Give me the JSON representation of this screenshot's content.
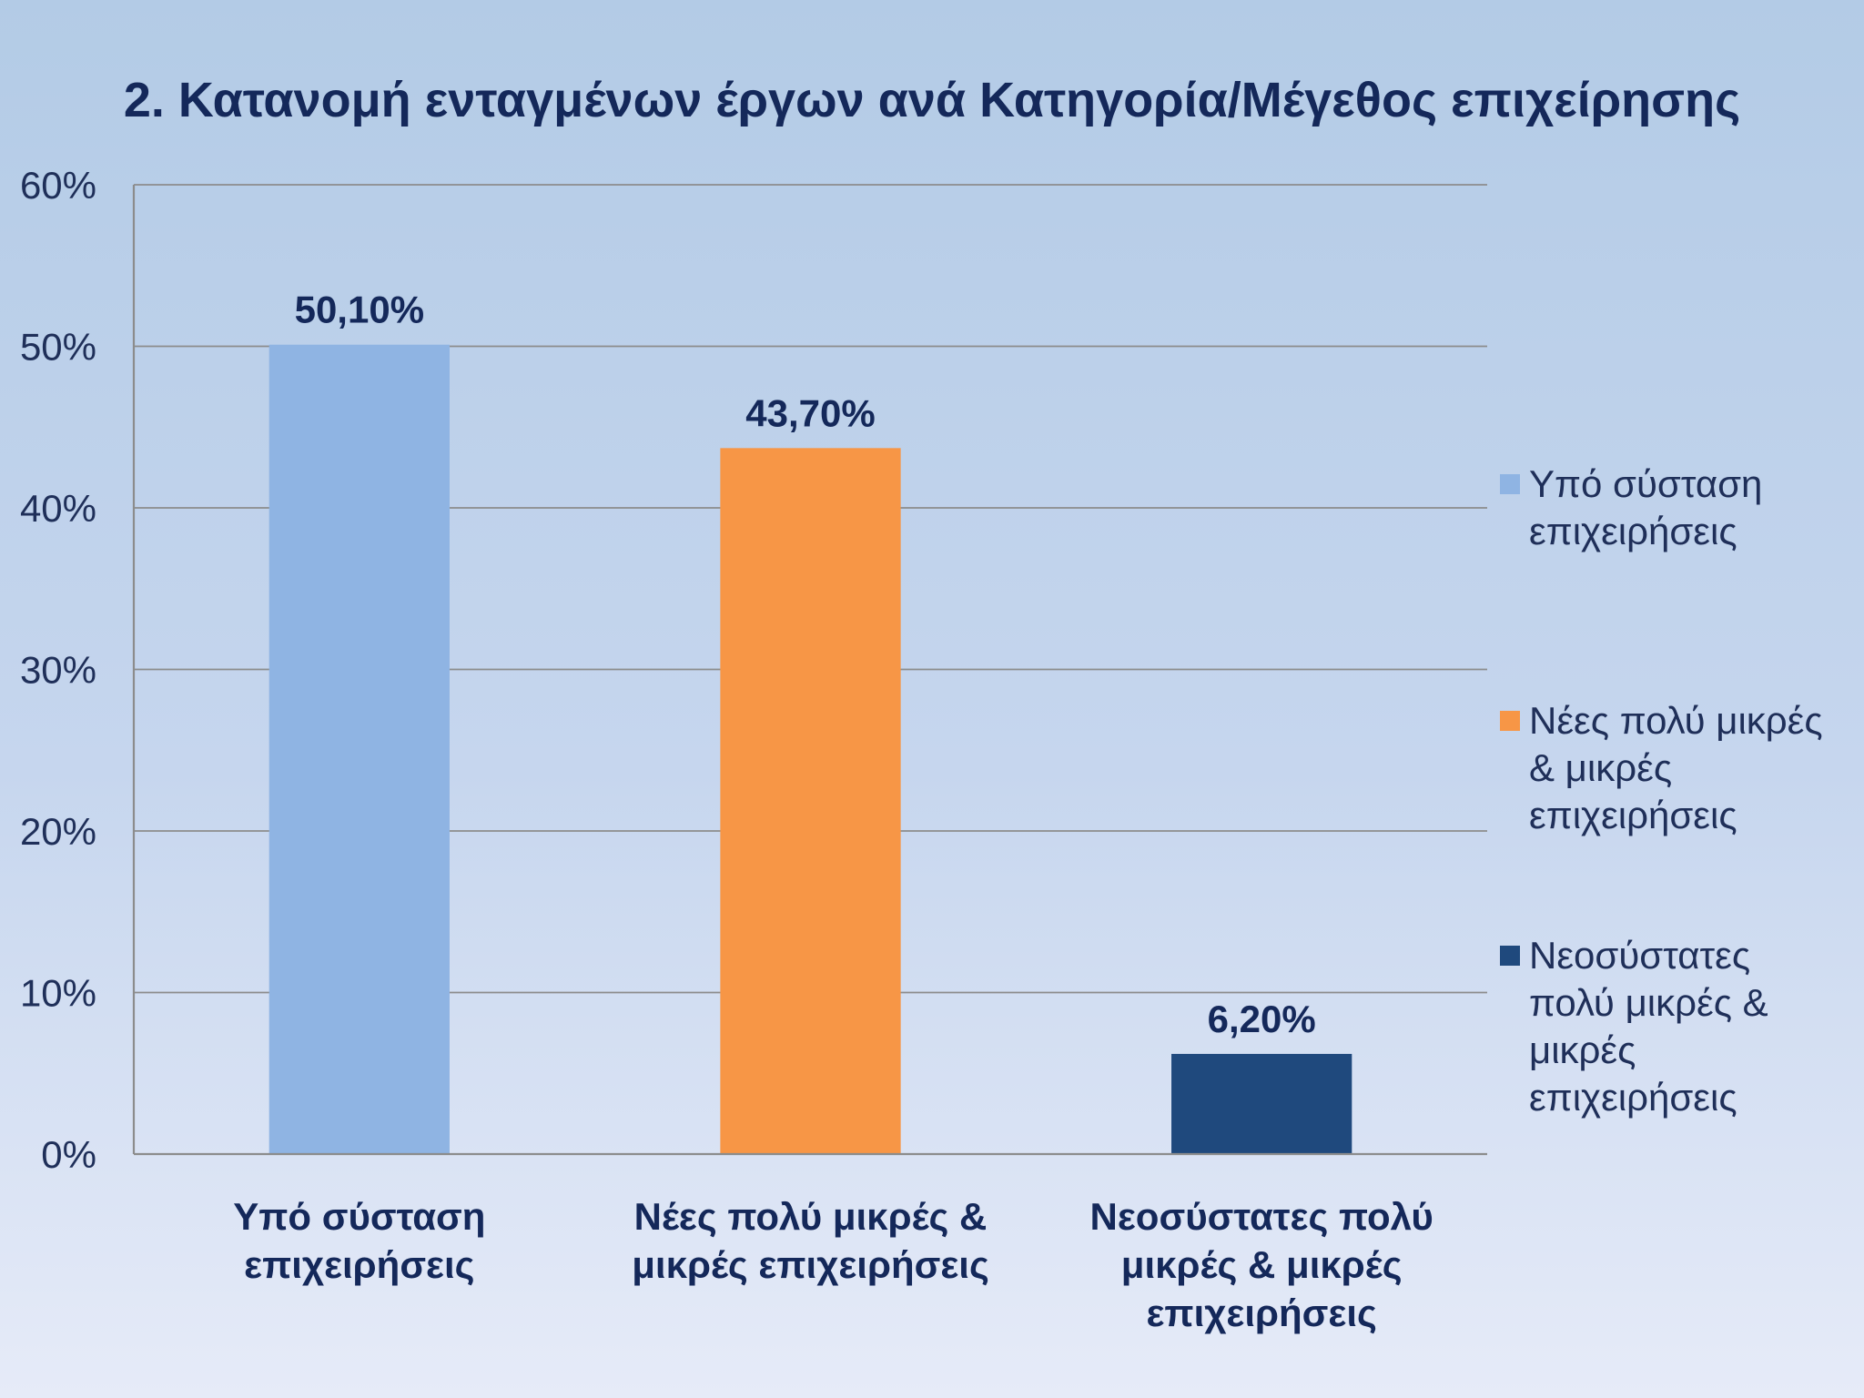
{
  "chart_data": {
    "type": "bar",
    "title": "2. Κατανομή ενταγμένων έργων ανά Κατηγορία/Μέγεθος επιχείρησης",
    "xlabel": "",
    "ylabel": "",
    "ylim": [
      0,
      60
    ],
    "yticks": [
      "0%",
      "10%",
      "20%",
      "30%",
      "40%",
      "50%",
      "60%"
    ],
    "ytick_values": [
      0,
      10,
      20,
      30,
      40,
      50,
      60
    ],
    "grid": true,
    "legend_position": "right",
    "categories": [
      [
        "Υπό σύσταση",
        "επιχειρήσεις"
      ],
      [
        "Νέες πολύ μικρές &",
        "μικρές επιχειρήσεις"
      ],
      [
        "Νεοσύστατες πολύ",
        "μικρές & μικρές",
        "επιχειρήσεις"
      ]
    ],
    "values": [
      50.1,
      43.7,
      6.2
    ],
    "data_labels": [
      "50,10%",
      "43,70%",
      "6,20%"
    ],
    "colors": [
      "#8fb4e3",
      "#f79646",
      "#1f497d"
    ],
    "legend": [
      [
        "Υπό σύσταση",
        "επιχειρήσεις"
      ],
      [
        "Νέες πολύ μικρές",
        "& μικρές",
        "επιχειρήσεις"
      ],
      [
        "Νεοσύστατες",
        "πολύ μικρές &",
        "μικρές",
        "επιχειρήσεις"
      ]
    ]
  }
}
